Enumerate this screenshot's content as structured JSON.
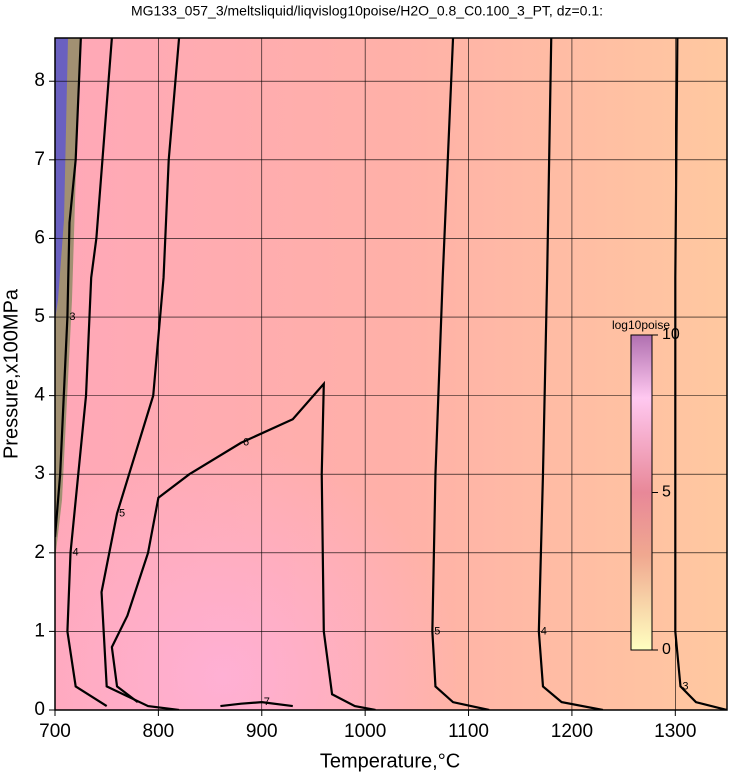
{
  "chart_data": {
    "type": "contour",
    "title": "MG133_057_3/meltsliquid/liqvislog10poise/H2O_0.8_C0.100_3_PT, dz=0.1:",
    "x_label": "Temperature,°C",
    "y_label": "Pressure,x100MPa",
    "xlim": [
      700,
      1350
    ],
    "ylim": [
      0,
      8.55
    ],
    "xticks": [
      700,
      800,
      900,
      1000,
      1100,
      1200,
      1300
    ],
    "yticks": [
      0,
      1,
      2,
      3,
      4,
      5,
      6,
      7,
      8
    ],
    "grid": true,
    "colorbar": {
      "label": "log10poise",
      "lim": [
        0,
        10
      ],
      "ticks": [
        0,
        5,
        10
      ]
    },
    "contours": [
      {
        "level": 3,
        "x": [
          1302,
          1300,
          1300,
          1305,
          1320,
          1350
        ],
        "y": [
          8.55,
          5.5,
          1,
          0.3,
          0.1,
          0
        ]
      },
      {
        "level": 4,
        "x": [
          1180,
          1176,
          1172,
          1168,
          1172,
          1190,
          1230
        ],
        "y": [
          8.55,
          5.5,
          3,
          1,
          0.3,
          0.1,
          0
        ]
      },
      {
        "level": 5,
        "x": [
          1085,
          1075,
          1068,
          1065,
          1068,
          1085,
          1120
        ],
        "y": [
          8.55,
          5.5,
          3,
          1,
          0.3,
          0.1,
          0
        ]
      },
      {
        "level": 6,
        "x": [
          780,
          760,
          755,
          770,
          790,
          800,
          830,
          880,
          930,
          960,
          958,
          960,
          968,
          990,
          1010
        ],
        "y": [
          0.1,
          0.3,
          0.8,
          1.2,
          2,
          2.7,
          3.0,
          3.4,
          3.7,
          4.15,
          3,
          1,
          0.2,
          0.05,
          0
        ]
      },
      {
        "level": 5,
        "x": [
          820,
          810,
          805,
          795,
          760,
          745,
          750,
          790,
          820
        ],
        "y": [
          8.55,
          7,
          5.5,
          4,
          2.5,
          1.5,
          0.3,
          0.05,
          0
        ]
      },
      {
        "level": 4,
        "x": [
          755,
          740,
          735,
          730,
          715,
          712,
          720,
          750
        ],
        "y": [
          8.55,
          6,
          5.5,
          4,
          2,
          1,
          0.3,
          0.05
        ]
      },
      {
        "level": 3,
        "x": [
          725,
          720,
          714,
          712,
          705,
          700
        ],
        "y": [
          8.55,
          7,
          6.2,
          5,
          3,
          2.2
        ]
      },
      {
        "level": 7,
        "x": [
          860,
          880,
          900,
          930
        ],
        "y": [
          0.05,
          0.08,
          0.1,
          0.05
        ]
      }
    ]
  }
}
